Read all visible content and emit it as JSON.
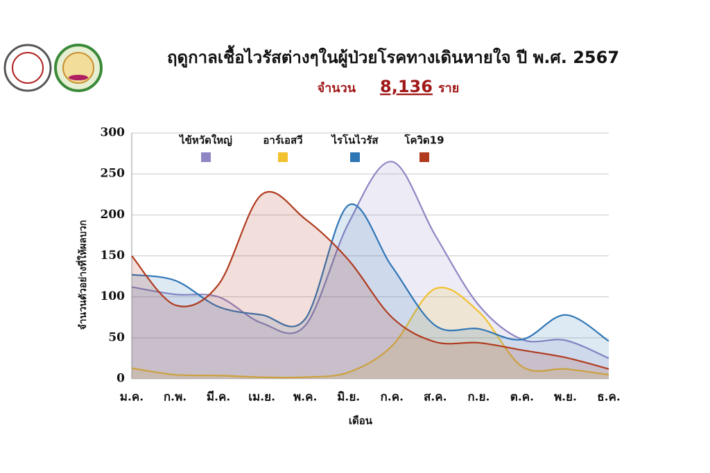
{
  "chart_data": {
    "type": "line",
    "title": "ฤดูกาลเชื้อไวรัสต่างๆในผู้ป่วยโรคทางเดินหายใจ ปี พ.ศ. 2567",
    "subtitle": [
      "จำนวน",
      "8,136",
      "ราย"
    ],
    "y_label": "จำนวนตัวอย่างที่ให้ผลบวก",
    "x_label": "เดือน",
    "categories": [
      "ม.ค.",
      "ก.พ.",
      "มี.ค.",
      "เม.ย.",
      "พ.ค.",
      "มิ.ย.",
      "ก.ค.",
      "ส.ค.",
      "ก.ย.",
      "ต.ค.",
      "พ.ย.",
      "ธ.ค."
    ],
    "ylim": [
      0,
      300
    ],
    "yticks": [
      0,
      50,
      100,
      150,
      200,
      250,
      300
    ],
    "grid": true,
    "series": [
      {
        "name": "ไข้หวัดใหญ่",
        "color": "#8e86c4",
        "values": [
          112,
          103,
          100,
          68,
          65,
          190,
          265,
          175,
          90,
          48,
          47,
          25
        ]
      },
      {
        "name": "อาร์เอสวี",
        "color": "#f2c12e",
        "values": [
          13,
          5,
          4,
          2,
          2,
          8,
          40,
          110,
          82,
          15,
          12,
          5
        ]
      },
      {
        "name": "ไรโนไวรัส",
        "color": "#2e75b6",
        "values": [
          127,
          120,
          88,
          78,
          73,
          212,
          137,
          65,
          61,
          48,
          78,
          46
        ]
      },
      {
        "name": "โควิด19",
        "color": "#b03a1e",
        "values": [
          150,
          90,
          115,
          225,
          195,
          145,
          75,
          45,
          44,
          35,
          26,
          12
        ]
      }
    ]
  }
}
